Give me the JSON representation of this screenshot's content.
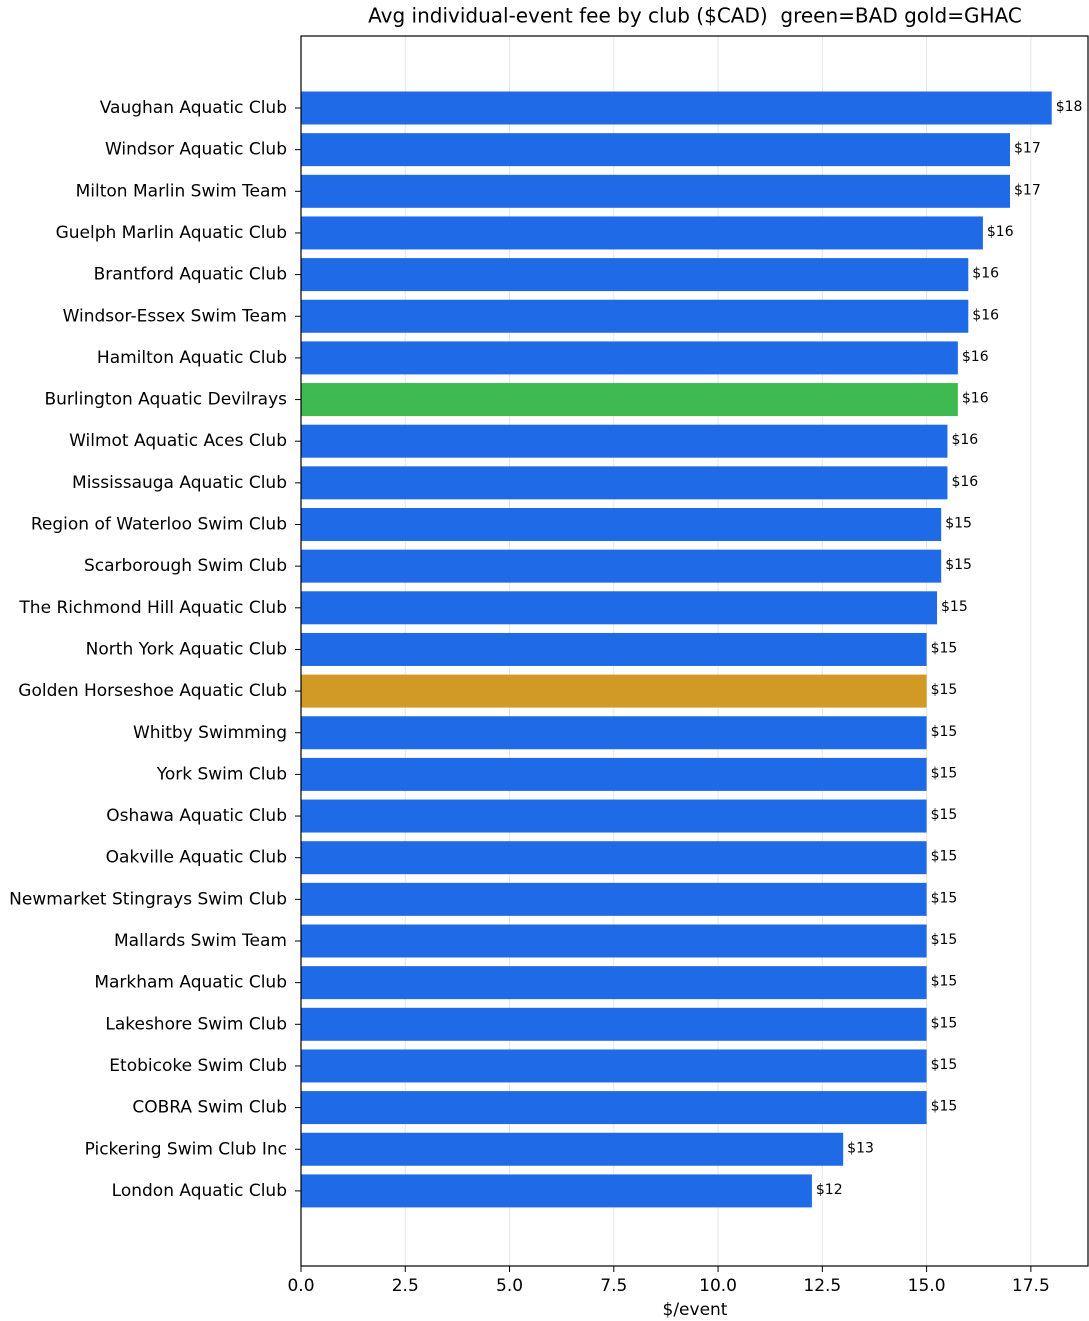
{
  "chart_data": {
    "type": "barh",
    "title": "Avg individual-event fee by club ($CAD)  green=BAD gold=GHAC",
    "xlabel": "$/event",
    "categories": [
      "Vaughan Aquatic Club",
      "Windsor Aquatic Club",
      "Milton Marlin Swim Team",
      "Guelph Marlin Aquatic Club",
      "Brantford Aquatic Club",
      "Windsor-Essex Swim Team",
      "Hamilton Aquatic Club",
      "Burlington Aquatic Devilrays",
      "Wilmot Aquatic Aces Club",
      "Mississauga Aquatic Club",
      "Region of Waterloo Swim Club",
      "Scarborough Swim Club",
      "The Richmond Hill Aquatic Club",
      "North York Aquatic Club",
      "Golden Horseshoe Aquatic Club",
      "Whitby Swimming",
      "York Swim Club",
      "Oshawa Aquatic Club",
      "Oakville Aquatic Club",
      "Newmarket Stingrays Swim Club",
      "Mallards Swim Team",
      "Markham Aquatic Club",
      "Lakeshore Swim Club",
      "Etobicoke Swim Club",
      "COBRA Swim Club",
      "Pickering Swim Club Inc",
      "London Aquatic Club"
    ],
    "values": [
      18.0,
      17.0,
      17.0,
      16.35,
      16.0,
      16.0,
      15.75,
      15.75,
      15.5,
      15.5,
      15.35,
      15.35,
      15.25,
      15.0,
      15.0,
      15.0,
      15.0,
      15.0,
      15.0,
      15.0,
      15.0,
      15.0,
      15.0,
      15.0,
      15.0,
      13.0,
      12.25
    ],
    "value_labels": [
      "$18",
      "$17",
      "$17",
      "$16",
      "$16",
      "$16",
      "$16",
      "$16",
      "$16",
      "$16",
      "$15",
      "$15",
      "$15",
      "$15",
      "$15",
      "$15",
      "$15",
      "$15",
      "$15",
      "$15",
      "$15",
      "$15",
      "$15",
      "$15",
      "$15",
      "$13",
      "$12"
    ],
    "colors": [
      "#1f6ae6",
      "#1f6ae6",
      "#1f6ae6",
      "#1f6ae6",
      "#1f6ae6",
      "#1f6ae6",
      "#1f6ae6",
      "#3fba50",
      "#1f6ae6",
      "#1f6ae6",
      "#1f6ae6",
      "#1f6ae6",
      "#1f6ae6",
      "#1f6ae6",
      "#d09a25",
      "#1f6ae6",
      "#1f6ae6",
      "#1f6ae6",
      "#1f6ae6",
      "#1f6ae6",
      "#1f6ae6",
      "#1f6ae6",
      "#1f6ae6",
      "#1f6ae6",
      "#1f6ae6",
      "#1f6ae6",
      "#1f6ae6"
    ],
    "xlim": [
      0,
      18.87
    ],
    "xticks": [
      {
        "value": 0,
        "label": "0.0"
      },
      2.5,
      {
        "value": 5,
        "label": "5.0"
      },
      7.5,
      {
        "value": 10,
        "label": "10.0"
      },
      12.5,
      {
        "value": 15,
        "label": "15.0"
      },
      17.5
    ],
    "grid": true
  }
}
